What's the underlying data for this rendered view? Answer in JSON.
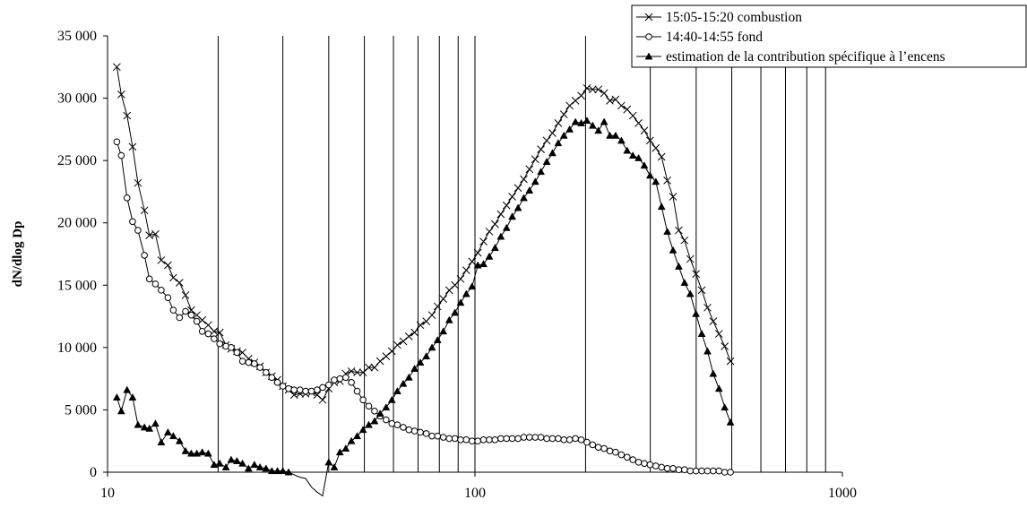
{
  "chart_data": {
    "type": "line",
    "title": "",
    "xlabel": "",
    "ylabel": "dN/dlog Dp",
    "xscale": "log",
    "xlim": [
      10,
      1000
    ],
    "ylim": [
      0,
      35000
    ],
    "xticks": [
      10,
      100,
      1000
    ],
    "xtick_labels": [
      "10",
      "100",
      "1000"
    ],
    "yticks": [
      0,
      5000,
      10000,
      15000,
      20000,
      25000,
      30000,
      35000
    ],
    "ytick_labels": [
      "0",
      "5 000",
      "10 000",
      "15 000",
      "20 000",
      "25 000",
      "30 000",
      "35 000"
    ],
    "grid": "vertical lines at 20, 30, 40, 50, 60, 70, 80, 90, 100, 200, 300, 400, 500, 600, 700, 800, 900",
    "vertical_lines": [
      20,
      30,
      40,
      50,
      60,
      70,
      80,
      90,
      100,
      200,
      300,
      400,
      500,
      600,
      700,
      800,
      900
    ],
    "legend_position": "top-right",
    "series": [
      {
        "name": "15:05-15:20 combustion",
        "marker": "x",
        "x": [
          10.6,
          10.9,
          11.3,
          11.7,
          12.1,
          12.6,
          13,
          13.5,
          14,
          14.6,
          15.1,
          15.7,
          16.3,
          16.9,
          17.5,
          18.1,
          18.8,
          19.5,
          20.2,
          21,
          21.7,
          22.5,
          23.3,
          24.2,
          25.1,
          26,
          27,
          28,
          29,
          30,
          31.1,
          32.2,
          33.4,
          34.6,
          35.9,
          37.2,
          38.5,
          40,
          41.4,
          42.9,
          44.5,
          46.1,
          47.8,
          49.6,
          51.4,
          53.3,
          55.2,
          57.3,
          59.4,
          61.5,
          63.8,
          66.1,
          68.5,
          71,
          73.7,
          76.4,
          79.1,
          82,
          85.1,
          88.2,
          91.4,
          94.7,
          98.2,
          101.8,
          105.5,
          109.4,
          113.4,
          117.6,
          121.9,
          126.3,
          131,
          135.8,
          140.7,
          145.9,
          151.2,
          156.8,
          162.5,
          168.5,
          174.6,
          181,
          187.7,
          194.6,
          201.7,
          209.1,
          216.7,
          224.7,
          232.9,
          241.4,
          250.3,
          259.5,
          269,
          278.8,
          289,
          299.6,
          310.6,
          322,
          333.8,
          346,
          358.7,
          371.8,
          385.4,
          399.5,
          414.2,
          429.4,
          445.1,
          461.4,
          478.3,
          495.8
        ],
        "y": [
          32500,
          30300,
          28600,
          26100,
          23200,
          21000,
          19000,
          19100,
          17000,
          16600,
          15600,
          15200,
          14200,
          13000,
          12600,
          12200,
          11800,
          11300,
          11200,
          10200,
          9900,
          9700,
          9600,
          9100,
          8800,
          8500,
          8000,
          7700,
          7400,
          6900,
          6600,
          6200,
          6300,
          6300,
          6400,
          6200,
          5800,
          6700,
          7200,
          7300,
          7900,
          8100,
          8000,
          8000,
          8400,
          8400,
          8900,
          9300,
          9700,
          10200,
          10500,
          10900,
          11200,
          11800,
          12100,
          12600,
          13300,
          13900,
          14600,
          15000,
          15500,
          16200,
          16900,
          17600,
          18500,
          19300,
          19900,
          20700,
          21400,
          22100,
          22800,
          23500,
          24300,
          25100,
          25900,
          26600,
          27200,
          28000,
          28700,
          29400,
          29800,
          30200,
          30800,
          30700,
          30700,
          30400,
          29800,
          29900,
          29400,
          29100,
          28600,
          28000,
          27400,
          26600,
          26000,
          25300,
          23400,
          22100,
          19400,
          18600,
          17100,
          15900,
          14600,
          13200,
          12100,
          11100,
          10100,
          8900
        ]
      },
      {
        "name": "14:40-14:55 fond",
        "marker": "o",
        "x": [
          10.6,
          10.9,
          11.3,
          11.7,
          12.1,
          12.6,
          13,
          13.5,
          14,
          14.6,
          15.1,
          15.7,
          16.3,
          16.9,
          17.5,
          18.1,
          18.8,
          19.5,
          20.2,
          21,
          21.7,
          22.5,
          23.3,
          24.2,
          25.1,
          26,
          27,
          28,
          29,
          30,
          31.1,
          32.2,
          33.4,
          34.6,
          35.9,
          37.2,
          38.5,
          40,
          41.4,
          42.9,
          44.5,
          46.1,
          47.8,
          49.6,
          51.4,
          53.3,
          55.2,
          57.3,
          59.4,
          61.5,
          63.8,
          66.1,
          68.5,
          71,
          73.7,
          76.4,
          79.1,
          82,
          85.1,
          88.2,
          91.4,
          94.7,
          98.2,
          101.8,
          105.5,
          109.4,
          113.4,
          117.6,
          121.9,
          126.3,
          131,
          135.8,
          140.7,
          145.9,
          151.2,
          156.8,
          162.5,
          168.5,
          174.6,
          181,
          187.7,
          194.6,
          201.7,
          209.1,
          216.7,
          224.7,
          232.9,
          241.4,
          250.3,
          259.5,
          269,
          278.8,
          289,
          299.6,
          310.6,
          322,
          333.8,
          346,
          358.7,
          371.8,
          385.4,
          399.5,
          414.2,
          429.4,
          445.1,
          461.4,
          478.3,
          495.8
        ],
        "y": [
          26500,
          25400,
          22000,
          20100,
          19400,
          17400,
          15500,
          15100,
          14600,
          14000,
          13000,
          12400,
          12900,
          12600,
          12100,
          11300,
          11100,
          10700,
          10300,
          10100,
          10000,
          9600,
          8900,
          8800,
          8700,
          8400,
          8000,
          7600,
          7200,
          6900,
          6700,
          6600,
          6600,
          6500,
          6500,
          6600,
          6800,
          7000,
          7400,
          7500,
          7600,
          7200,
          6500,
          5800,
          5300,
          4900,
          4500,
          4200,
          3900,
          3800,
          3600,
          3400,
          3300,
          3200,
          3100,
          2900,
          2900,
          2800,
          2700,
          2700,
          2600,
          2600,
          2500,
          2500,
          2600,
          2600,
          2600,
          2700,
          2700,
          2700,
          2700,
          2800,
          2800,
          2800,
          2800,
          2700,
          2700,
          2700,
          2600,
          2600,
          2700,
          2600,
          2400,
          2200,
          2000,
          1900,
          1700,
          1600,
          1400,
          1200,
          1000,
          800,
          700,
          600,
          500,
          400,
          300,
          300,
          200,
          200,
          100,
          100,
          100,
          100,
          100,
          100,
          0,
          0
        ]
      },
      {
        "name": "estimation de la contribution spécifique à l’encens",
        "marker": "triangle",
        "x": [
          10.6,
          10.9,
          11.3,
          11.7,
          12.1,
          12.6,
          13,
          13.5,
          14,
          14.6,
          15.1,
          15.7,
          16.3,
          16.9,
          17.5,
          18.1,
          18.8,
          19.5,
          20.2,
          21,
          21.7,
          22.5,
          23.3,
          24.2,
          25.1,
          26,
          27,
          28,
          29,
          30,
          31.1,
          32.2,
          33.4,
          34.6,
          35.9,
          37.2,
          38.5,
          40,
          41.4,
          42.9,
          44.5,
          46.1,
          47.8,
          49.6,
          51.4,
          53.3,
          55.2,
          57.3,
          59.4,
          61.5,
          63.8,
          66.1,
          68.5,
          71,
          73.7,
          76.4,
          79.1,
          82,
          85.1,
          88.2,
          91.4,
          94.7,
          98.2,
          101.8,
          105.5,
          109.4,
          113.4,
          117.6,
          121.9,
          126.3,
          131,
          135.8,
          140.7,
          145.9,
          151.2,
          156.8,
          162.5,
          168.5,
          174.6,
          181,
          187.7,
          194.6,
          201.7,
          209.1,
          216.7,
          224.7,
          232.9,
          241.4,
          250.3,
          259.5,
          269,
          278.8,
          289,
          299.6,
          310.6,
          322,
          333.8,
          346,
          358.7,
          371.8,
          385.4,
          399.5,
          414.2,
          429.4,
          445.1,
          461.4,
          478.3,
          495.8
        ],
        "y": [
          6000,
          4900,
          6600,
          6000,
          3800,
          3600,
          3500,
          3900,
          2400,
          3200,
          2900,
          2500,
          1700,
          1500,
          1500,
          1600,
          1500,
          600,
          700,
          400,
          1000,
          900,
          700,
          300,
          600,
          400,
          300,
          100,
          100,
          100,
          0,
          -200,
          -400,
          -500,
          -1200,
          -1600,
          -1900,
          800,
          400,
          1600,
          1900,
          2500,
          2900,
          3400,
          3800,
          4100,
          4700,
          5200,
          5800,
          6500,
          7100,
          7600,
          8300,
          8800,
          9300,
          10000,
          10600,
          11300,
          12200,
          12800,
          13600,
          14300,
          14900,
          16600,
          16700,
          17300,
          18000,
          18900,
          19600,
          20500,
          21200,
          22000,
          22600,
          23300,
          24100,
          24900,
          25600,
          26400,
          27000,
          27500,
          28100,
          28000,
          28200,
          27800,
          27400,
          28100,
          27000,
          27000,
          26600,
          25800,
          25400,
          25200,
          24600,
          23800,
          23300,
          21300,
          19300,
          17800,
          16500,
          15200,
          14300,
          12700,
          11100,
          9700,
          7900,
          6700,
          5200,
          4000
        ]
      }
    ]
  }
}
